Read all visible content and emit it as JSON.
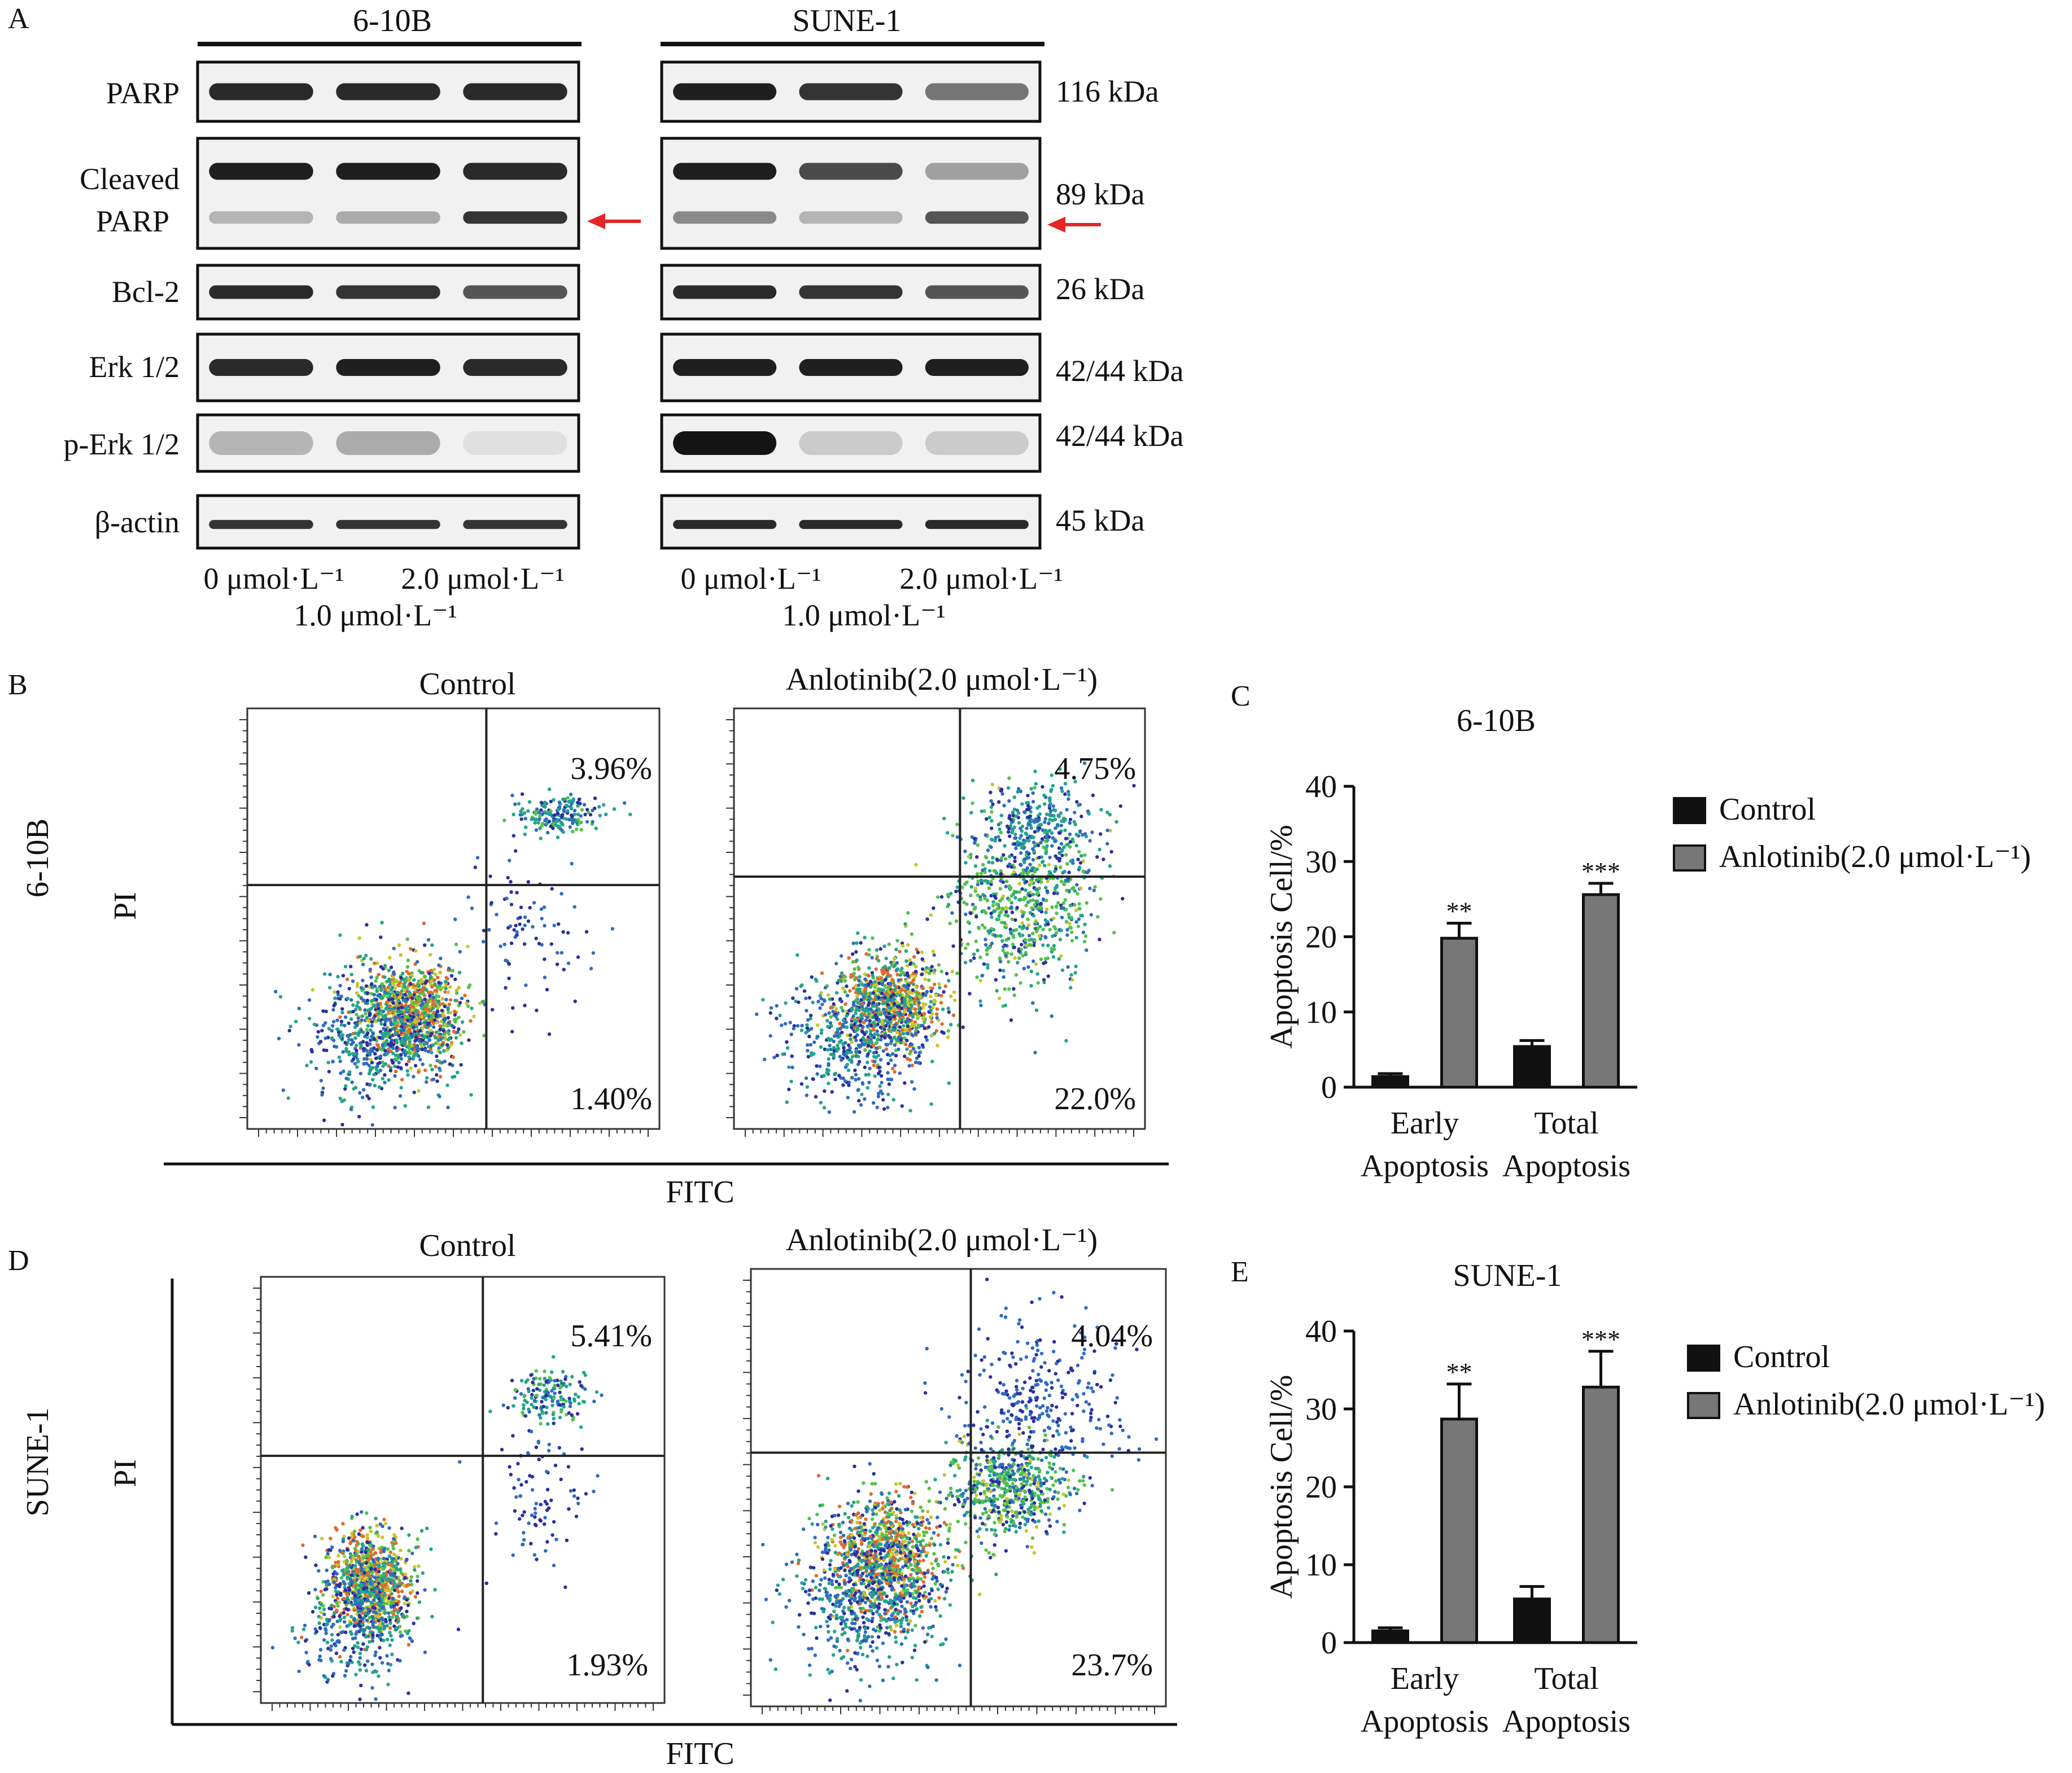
{
  "panels": {
    "A": "A",
    "B": "B",
    "C": "C",
    "D": "D",
    "E": "E"
  },
  "western": {
    "groups": [
      "6-10B",
      "SUNE-1"
    ],
    "rows": [
      {
        "label": [
          "PARP"
        ],
        "kda": "116 kDa"
      },
      {
        "label": [
          "Cleaved",
          "PARP"
        ],
        "kda": "89 kDa"
      },
      {
        "label": [
          "Bcl-2"
        ],
        "kda": "26 kDa"
      },
      {
        "label": [
          "Erk 1/2"
        ],
        "kda": "42/44 kDa"
      },
      {
        "label": [
          "p-Erk 1/2"
        ],
        "kda": "42/44 kDa"
      },
      {
        "label": [
          "β-actin"
        ],
        "kda": "45 kDa"
      }
    ],
    "dose_left": "0 μmol·L⁻¹",
    "dose_mid": "1.0 μmol·L⁻¹",
    "dose_right": "2.0 μmol·L⁻¹",
    "arrow_color": "#e32626",
    "band_intensity": {
      "6-10B": {
        "PARP": [
          0.9,
          0.9,
          0.9
        ],
        "Cleaved PARP upper": [
          0.95,
          0.95,
          0.9
        ],
        "Cleaved PARP lower": [
          0.25,
          0.3,
          0.85
        ],
        "Bcl-2": [
          0.9,
          0.85,
          0.7
        ],
        "Erk 1/2": [
          0.9,
          0.95,
          0.9
        ],
        "p-Erk 1/2": [
          0.25,
          0.3,
          0.05
        ],
        "β-actin": [
          0.85,
          0.85,
          0.85
        ]
      },
      "SUNE-1": {
        "PARP": [
          0.95,
          0.85,
          0.55
        ],
        "Cleaved PARP upper": [
          0.95,
          0.75,
          0.35
        ],
        "Cleaved PARP lower": [
          0.45,
          0.25,
          0.7
        ],
        "Bcl-2": [
          0.9,
          0.85,
          0.7
        ],
        "Erk 1/2": [
          0.95,
          0.95,
          0.95
        ],
        "p-Erk 1/2": [
          1.0,
          0.15,
          0.15
        ],
        "β-actin": [
          0.9,
          0.9,
          0.9
        ]
      }
    }
  },
  "flow": {
    "rows": [
      {
        "cell": "6-10B",
        "plots": [
          {
            "title": "Control",
            "q2": "3.96%",
            "q4": "1.40%"
          },
          {
            "title": "Anlotinib(2.0 μmol·L⁻¹)",
            "q2": "4.75%",
            "q4": "22.0%"
          }
        ]
      },
      {
        "cell": "SUNE-1",
        "plots": [
          {
            "title": "Control",
            "q2": "5.41%",
            "q4": "1.93%"
          },
          {
            "title": "Anlotinib(2.0 μmol·L⁻¹)",
            "q2": "4.04%",
            "q4": "23.7%"
          }
        ]
      }
    ],
    "ylabel": "PI",
    "xlabel": "FITC"
  },
  "chart_data": [
    {
      "type": "bar",
      "title": "6-10B",
      "categories": [
        "Early Apoptosis",
        "Total Apoptosis"
      ],
      "category_lines": [
        [
          "Early",
          "Apoptosis"
        ],
        [
          "Total",
          "Apoptosis"
        ]
      ],
      "series": [
        {
          "name": "Control",
          "values": [
            1.4,
            5.4
          ],
          "errors": [
            0.4,
            0.8
          ],
          "color": "#111111"
        },
        {
          "name": "Anlotinib(2.0 μmol·L⁻¹)",
          "values": [
            19.8,
            25.6
          ],
          "errors": [
            2.0,
            1.5
          ],
          "color": "#777777"
        }
      ],
      "significance": [
        "**",
        "***"
      ],
      "ylabel": "Apoptosis Cell/%",
      "ylim": [
        0,
        40
      ],
      "yticks": [
        0,
        10,
        20,
        30,
        40
      ]
    },
    {
      "type": "bar",
      "title": "SUNE-1",
      "categories": [
        "Early Apoptosis",
        "Total Apoptosis"
      ],
      "category_lines": [
        [
          "Early",
          "Apoptosis"
        ],
        [
          "Total",
          "Apoptosis"
        ]
      ],
      "series": [
        {
          "name": "Control",
          "values": [
            1.5,
            5.6
          ],
          "errors": [
            0.4,
            1.6
          ],
          "color": "#111111"
        },
        {
          "name": "Anlotinib(2.0 μmol·L⁻¹)",
          "values": [
            28.7,
            32.8
          ],
          "errors": [
            4.5,
            4.6
          ],
          "color": "#777777"
        }
      ],
      "significance": [
        "**",
        "***"
      ],
      "ylabel": "Apoptosis Cell/%",
      "ylim": [
        0,
        40
      ],
      "yticks": [
        0,
        10,
        20,
        30,
        40
      ]
    }
  ]
}
